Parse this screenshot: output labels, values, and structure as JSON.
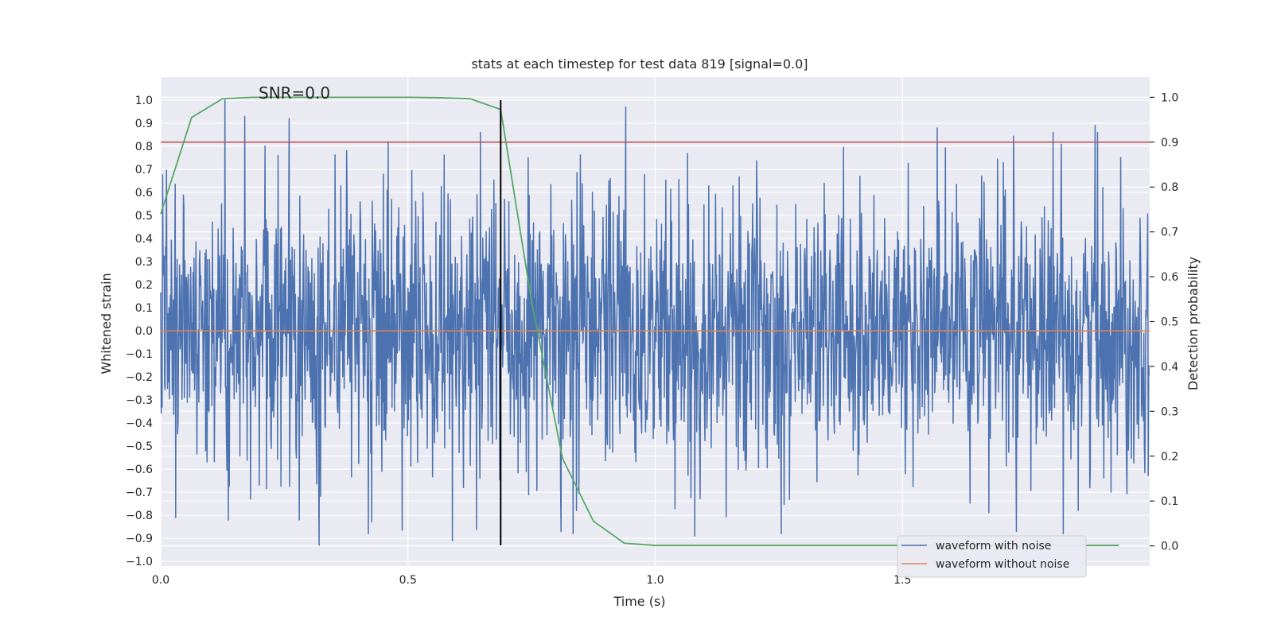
{
  "chart_data": {
    "type": "line",
    "title": "stats at each timestep for test data 819 [signal=0.0]",
    "xlabel": "Time (s)",
    "ylabel": "Whitened strain",
    "y2label": "Detection probability",
    "annotation": "SNR=0.0",
    "xlim": [
      0.0,
      2.0
    ],
    "ylim": [
      -1.02,
      1.1
    ],
    "y2lim": [
      -0.045,
      1.045
    ],
    "xticks": [
      0.0,
      0.5,
      1.0,
      1.5
    ],
    "xtick_labels": [
      "0.0",
      "0.5",
      "1.0",
      "1.5"
    ],
    "yticks": [
      -1.0,
      -0.9,
      -0.8,
      -0.7,
      -0.6,
      -0.5,
      -0.4,
      -0.3,
      -0.2,
      -0.1,
      0.0,
      0.1,
      0.2,
      0.3,
      0.4,
      0.5,
      0.6,
      0.7,
      0.8,
      0.9,
      1.0
    ],
    "ytick_labels": [
      "−1.0",
      "−0.9",
      "−0.8",
      "−0.7",
      "−0.6",
      "−0.5",
      "−0.4",
      "−0.3",
      "−0.2",
      "−0.1",
      "0.0",
      "0.1",
      "0.2",
      "0.3",
      "0.4",
      "0.5",
      "0.6",
      "0.7",
      "0.8",
      "0.9",
      "1.0"
    ],
    "y2ticks": [
      0.0,
      0.1,
      0.2,
      0.3,
      0.4,
      0.5,
      0.6,
      0.7,
      0.8,
      0.9,
      1.0
    ],
    "y2tick_labels": [
      "0.0",
      "0.1",
      "0.2",
      "0.3",
      "0.4",
      "0.5",
      "0.6",
      "0.7",
      "0.8",
      "0.9",
      "1.0"
    ],
    "grid": true,
    "legend_position": "lower-right",
    "series": [
      {
        "name": "waveform with noise",
        "color": "#4c72b0",
        "kind": "noise",
        "duration": 2.0,
        "samples": 2048,
        "std": 0.3,
        "peaks": [
          {
            "x": 0.13,
            "y": 1.0
          },
          {
            "x": 0.17,
            "y": 0.93
          },
          {
            "x": 0.26,
            "y": 0.92
          },
          {
            "x": 0.46,
            "y": 0.82
          },
          {
            "x": 0.94,
            "y": 0.97
          },
          {
            "x": 1.57,
            "y": 0.88
          },
          {
            "x": 1.89,
            "y": 0.89
          },
          {
            "x": 0.32,
            "y": -0.93
          },
          {
            "x": 0.59,
            "y": -0.91
          },
          {
            "x": 1.08,
            "y": -0.89
          },
          {
            "x": 1.73,
            "y": -0.87
          },
          {
            "x": 0.81,
            "y": -0.87
          },
          {
            "x": 0.03,
            "y": -0.81
          },
          {
            "x": 0.28,
            "y": -0.82
          }
        ]
      },
      {
        "name": "waveform without noise",
        "color": "#dd8452",
        "kind": "flat",
        "x": [
          0.0,
          2.0
        ],
        "y": [
          0.0,
          0.0
        ]
      }
    ],
    "probability": {
      "color": "#55a868",
      "x": [
        0.0,
        0.0625,
        0.125,
        0.1875,
        0.25,
        0.3125,
        0.375,
        0.4375,
        0.5,
        0.5625,
        0.625,
        0.6875,
        0.75,
        0.8125,
        0.875,
        0.9375,
        1.0,
        1.0625,
        1.125,
        1.1875,
        1.25,
        1.3125,
        1.375,
        1.4375,
        1.5,
        1.5625,
        1.625,
        1.6875,
        1.75,
        1.8125,
        1.875,
        1.9375
      ],
      "y": [
        0.74,
        0.955,
        0.997,
        1.0,
        1.0,
        1.0,
        1.0,
        1.0,
        1.0,
        0.999,
        0.997,
        0.973,
        0.545,
        0.195,
        0.055,
        0.006,
        0.001,
        0.001,
        0.001,
        0.001,
        0.001,
        0.001,
        0.001,
        0.001,
        0.001,
        0.001,
        0.001,
        0.001,
        0.001,
        0.001,
        0.001,
        0.001
      ]
    },
    "threshold": {
      "y2": 0.9,
      "color": "#c44e52"
    },
    "vline": {
      "x": 0.6875,
      "y_range": [
        -0.93,
        1.0
      ],
      "color": "#000000"
    }
  }
}
